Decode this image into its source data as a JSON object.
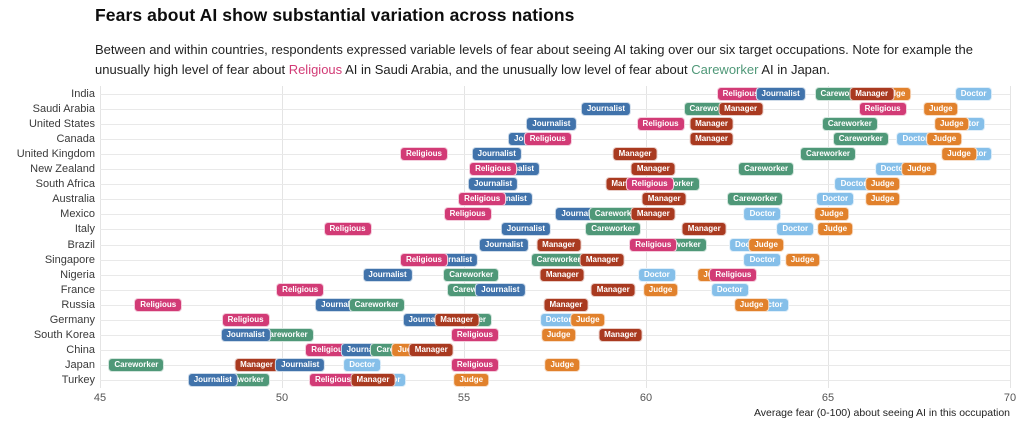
{
  "title": "Fears about AI show substantial variation across nations",
  "subtitle": {
    "segments": [
      {
        "text": "Between and within countries, respondents expressed variable levels of fear about seeing AI taking over our six target occupations. Note for example the unusually high level of fear about "
      },
      {
        "text": "Religious",
        "color": "#d23b76"
      },
      {
        "text": " AI in Saudi Arabia, and the unusually low level of fear about "
      },
      {
        "text": "Careworker",
        "color": "#4f9878"
      },
      {
        "text": " AI in Japan."
      }
    ]
  },
  "chart_data": {
    "type": "scatter",
    "xlabel": "Average fear (0-100) about seeing AI in this occupation",
    "xlim": [
      45,
      70
    ],
    "x_ticks": [
      45,
      50,
      55,
      60,
      65,
      70
    ],
    "grid": true,
    "legend_position": "none",
    "occupation_colors": {
      "Religious": "#d23b76",
      "Journalist": "#4173ab",
      "Careworker": "#4f9878",
      "Manager": "#a93a20",
      "Doctor": "#85bfe9",
      "Judge": "#e1812c"
    },
    "countries": [
      {
        "name": "India",
        "boxes": [
          [
            "Religious",
            62.6
          ],
          [
            "Journalist",
            63.7
          ],
          [
            "Careworker",
            65.4
          ],
          [
            "Judge",
            66.8
          ],
          [
            "Manager",
            66.2
          ],
          [
            "Doctor",
            69.0
          ]
        ]
      },
      {
        "name": "Saudi Arabia",
        "boxes": [
          [
            "Journalist",
            58.9
          ],
          [
            "Careworker",
            61.8
          ],
          [
            "Manager",
            62.6
          ],
          [
            "Religious",
            66.5
          ],
          [
            "Judge",
            68.1
          ]
        ]
      },
      {
        "name": "United States",
        "boxes": [
          [
            "Journalist",
            57.4
          ],
          [
            "Religious",
            60.4
          ],
          [
            "Manager",
            61.8
          ],
          [
            "Careworker",
            65.6
          ],
          [
            "Doctor",
            68.8
          ],
          [
            "Judge",
            68.4
          ]
        ]
      },
      {
        "name": "Canada",
        "boxes": [
          [
            "Journalist",
            56.9
          ],
          [
            "Religious",
            57.3
          ],
          [
            "Manager",
            61.8
          ],
          [
            "Careworker",
            65.9
          ],
          [
            "Doctor",
            67.4
          ],
          [
            "Judge",
            68.2
          ]
        ]
      },
      {
        "name": "United Kingdom",
        "boxes": [
          [
            "Religious",
            53.9
          ],
          [
            "Journalist",
            55.9
          ],
          [
            "Manager",
            59.7
          ],
          [
            "Careworker",
            65.0
          ],
          [
            "Doctor",
            69.0
          ],
          [
            "Judge",
            68.6
          ]
        ]
      },
      {
        "name": "New Zealand",
        "boxes": [
          [
            "Journalist",
            56.4
          ],
          [
            "Religious",
            55.8
          ],
          [
            "Manager",
            60.2
          ],
          [
            "Careworker",
            63.3
          ],
          [
            "Doctor",
            66.8
          ],
          [
            "Judge",
            67.5
          ]
        ]
      },
      {
        "name": "South Africa",
        "boxes": [
          [
            "Journalist",
            55.8
          ],
          [
            "Manager",
            59.5
          ],
          [
            "Careworker",
            60.7
          ],
          [
            "Religious",
            60.1
          ],
          [
            "Doctor",
            65.7
          ],
          [
            "Judge",
            66.5
          ]
        ]
      },
      {
        "name": "Australia",
        "boxes": [
          [
            "Journalist",
            56.2
          ],
          [
            "Religious",
            55.5
          ],
          [
            "Manager",
            60.5
          ],
          [
            "Careworker",
            63.0
          ],
          [
            "Doctor",
            65.2
          ],
          [
            "Judge",
            66.5
          ]
        ]
      },
      {
        "name": "Mexico",
        "boxes": [
          [
            "Religious",
            55.1
          ],
          [
            "Journalist",
            58.2
          ],
          [
            "Careworker",
            59.2
          ],
          [
            "Manager",
            60.2
          ],
          [
            "Doctor",
            63.2
          ],
          [
            "Judge",
            65.1
          ]
        ]
      },
      {
        "name": "Italy",
        "boxes": [
          [
            "Religious",
            51.8
          ],
          [
            "Journalist",
            56.7
          ],
          [
            "Careworker",
            59.1
          ],
          [
            "Manager",
            61.6
          ],
          [
            "Doctor",
            64.1
          ],
          [
            "Judge",
            65.2
          ]
        ]
      },
      {
        "name": "Brazil",
        "boxes": [
          [
            "Journalist",
            56.1
          ],
          [
            "Manager",
            57.6
          ],
          [
            "Careworker",
            60.9
          ],
          [
            "Religious",
            60.2
          ],
          [
            "Doctor",
            62.8
          ],
          [
            "Judge",
            63.3
          ]
        ]
      },
      {
        "name": "Singapore",
        "boxes": [
          [
            "Journalist",
            54.7
          ],
          [
            "Religious",
            53.9
          ],
          [
            "Careworker",
            57.6
          ],
          [
            "Manager",
            58.8
          ],
          [
            "Doctor",
            63.2
          ],
          [
            "Judge",
            64.3
          ]
        ]
      },
      {
        "name": "Nigeria",
        "boxes": [
          [
            "Journalist",
            52.9
          ],
          [
            "Careworker",
            55.2
          ],
          [
            "Manager",
            57.7
          ],
          [
            "Doctor",
            60.3
          ],
          [
            "Judge",
            61.9
          ],
          [
            "Religious",
            62.4
          ]
        ]
      },
      {
        "name": "France",
        "boxes": [
          [
            "Religious",
            50.5
          ],
          [
            "Careworker",
            55.3
          ],
          [
            "Journalist",
            56.0
          ],
          [
            "Manager",
            59.1
          ],
          [
            "Judge",
            60.4
          ],
          [
            "Doctor",
            62.3
          ]
        ]
      },
      {
        "name": "Russia",
        "boxes": [
          [
            "Religious",
            46.6
          ],
          [
            "Journalist",
            51.6
          ],
          [
            "Careworker",
            52.6
          ],
          [
            "Manager",
            57.8
          ],
          [
            "Doctor",
            63.4
          ],
          [
            "Judge",
            62.9
          ]
        ]
      },
      {
        "name": "Germany",
        "boxes": [
          [
            "Religious",
            49.0
          ],
          [
            "Careworker",
            55.0
          ],
          [
            "Journalist",
            54.0
          ],
          [
            "Manager",
            54.8
          ],
          [
            "Doctor",
            57.6
          ],
          [
            "Judge",
            58.4
          ]
        ]
      },
      {
        "name": "South Korea",
        "boxes": [
          [
            "Careworker",
            50.1
          ],
          [
            "Journalist",
            49.0
          ],
          [
            "Religious",
            55.3
          ],
          [
            "Judge",
            57.6
          ],
          [
            "Manager",
            59.3
          ]
        ]
      },
      {
        "name": "China",
        "boxes": [
          [
            "Religious",
            51.3
          ],
          [
            "Journalist",
            52.3
          ],
          [
            "Careworker",
            53.2
          ],
          [
            "Judge",
            53.5
          ],
          [
            "Manager",
            54.1
          ]
        ]
      },
      {
        "name": "Japan",
        "boxes": [
          [
            "Careworker",
            46.0
          ],
          [
            "Manager",
            49.3
          ],
          [
            "Journalist",
            50.5
          ],
          [
            "Doctor",
            52.2
          ],
          [
            "Religious",
            55.3
          ],
          [
            "Judge",
            57.7
          ]
        ]
      },
      {
        "name": "Turkey",
        "boxes": [
          [
            "Careworker",
            48.9
          ],
          [
            "Journalist",
            48.1
          ],
          [
            "Religious",
            51.4
          ],
          [
            "Doctor",
            52.9
          ],
          [
            "Manager",
            52.5
          ],
          [
            "Judge",
            55.2
          ]
        ]
      }
    ]
  }
}
